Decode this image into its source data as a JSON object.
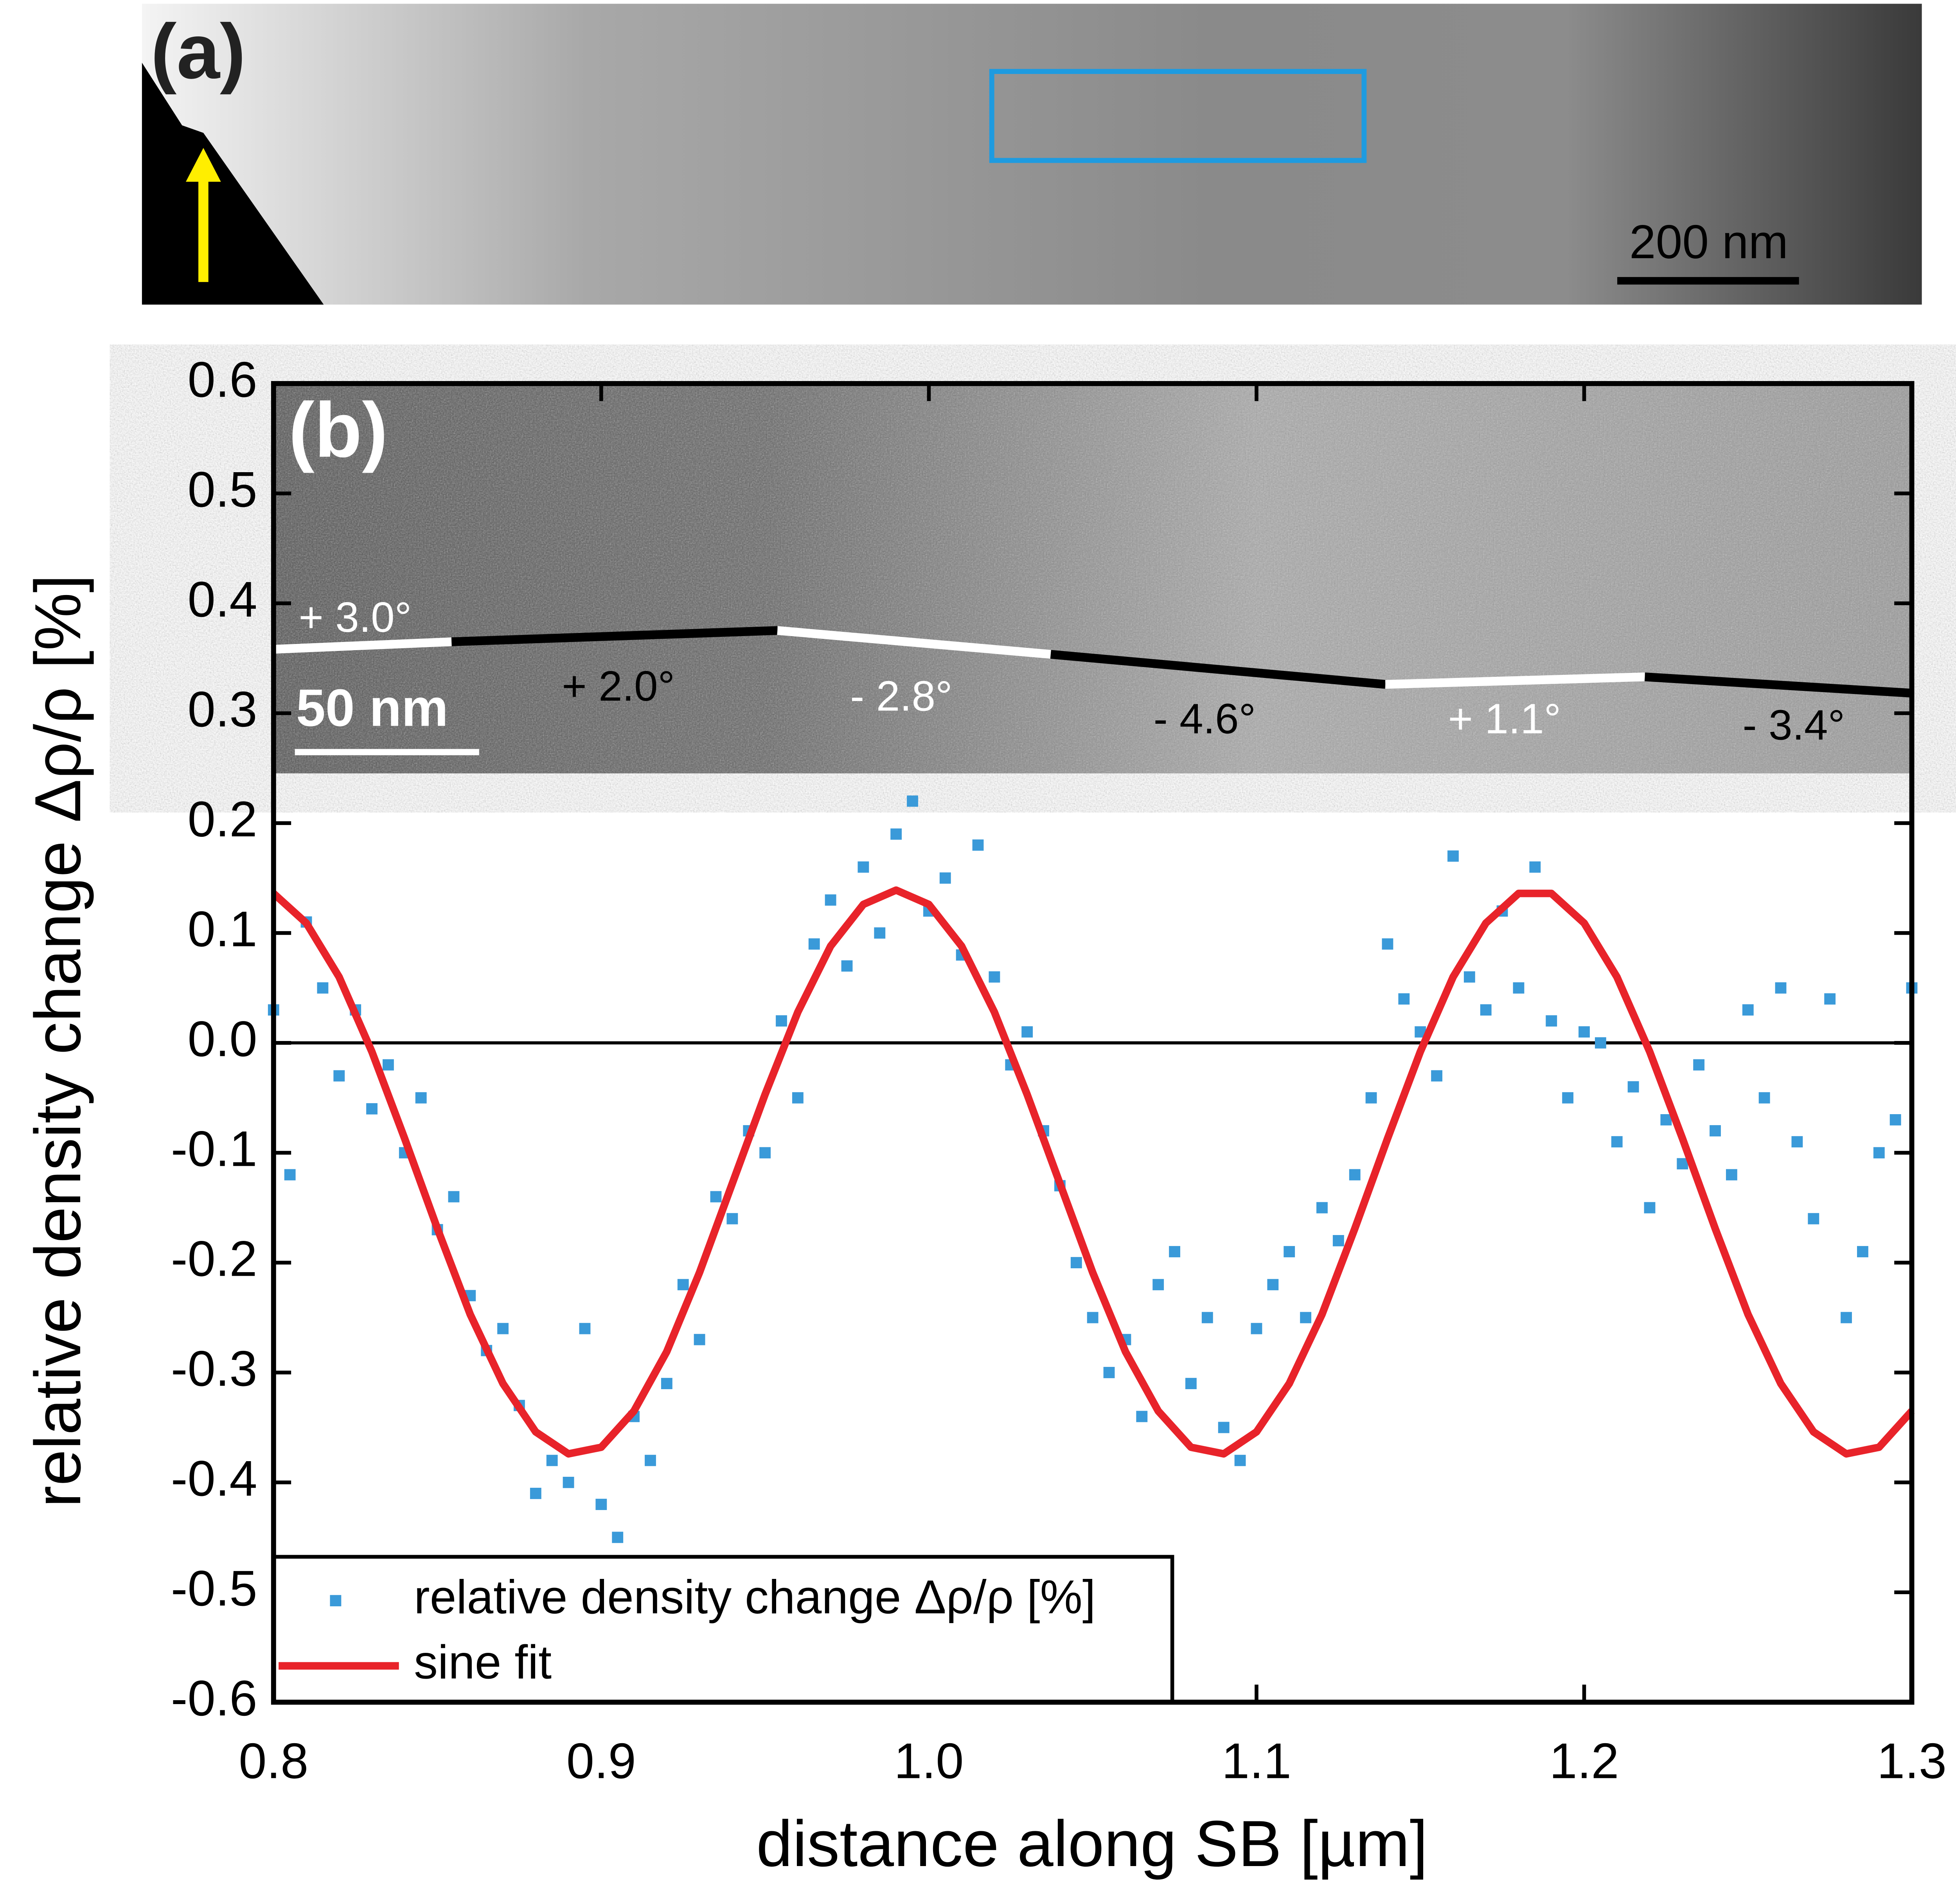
{
  "chart_data": {
    "type": "scatter",
    "xlabel": "distance along SB [µm]",
    "ylabel": "relative density change Δρ/ρ [%]",
    "xlim": [
      0.8,
      1.3
    ],
    "xticks": [
      0.8,
      0.9,
      {
        "value": 1.0,
        "label": "1.0"
      },
      1.1,
      1.2,
      1.3
    ],
    "ylim": [
      -0.6,
      0.6
    ],
    "yticks": [
      0.6,
      0.5,
      0.4,
      0.3,
      0.2,
      0.1,
      {
        "value": 0.0,
        "label": "0.0"
      },
      -0.1,
      -0.2,
      -0.3,
      -0.4,
      -0.5,
      -0.6
    ],
    "legend": "lower left",
    "annotations": [
      "(a)",
      "200 nm",
      "(b)",
      "50 nm",
      "+ 3.0°",
      "+ 2.0°",
      "- 2.8°",
      "- 4.6°",
      "+ 1.1°",
      "- 3.4°"
    ],
    "series": [
      {
        "name": "relative density change Δρ/ρ [%]",
        "color": "#3a9ad9",
        "kind": "scatter",
        "x": [
          0.8,
          0.805,
          0.81,
          0.815,
          0.82,
          0.825,
          0.83,
          0.835,
          0.84,
          0.845,
          0.85,
          0.855,
          0.86,
          0.865,
          0.87,
          0.875,
          0.88,
          0.885,
          0.89,
          0.895,
          0.9,
          0.905,
          0.91,
          0.915,
          0.92,
          0.925,
          0.93,
          0.935,
          0.94,
          0.945,
          0.95,
          0.955,
          0.96,
          0.965,
          0.97,
          0.975,
          0.98,
          0.985,
          0.99,
          0.995,
          1.0,
          1.005,
          1.01,
          1.015,
          1.02,
          1.025,
          1.03,
          1.035,
          1.04,
          1.045,
          1.05,
          1.055,
          1.06,
          1.065,
          1.07,
          1.075,
          1.08,
          1.085,
          1.09,
          1.095,
          1.1,
          1.105,
          1.11,
          1.115,
          1.12,
          1.125,
          1.13,
          1.135,
          1.14,
          1.145,
          1.15,
          1.155,
          1.16,
          1.165,
          1.17,
          1.175,
          1.18,
          1.185,
          1.19,
          1.195,
          1.2,
          1.205,
          1.21,
          1.215,
          1.22,
          1.225,
          1.23,
          1.235,
          1.24,
          1.245,
          1.25,
          1.255,
          1.26,
          1.265,
          1.27,
          1.275,
          1.28,
          1.285,
          1.29,
          1.295,
          1.3
        ],
        "values": [
          0.03,
          -0.12,
          0.11,
          0.05,
          -0.03,
          0.03,
          -0.06,
          -0.02,
          -0.1,
          -0.05,
          -0.17,
          -0.14,
          -0.23,
          -0.28,
          -0.26,
          -0.33,
          -0.41,
          -0.38,
          -0.4,
          -0.26,
          -0.42,
          -0.45,
          -0.34,
          -0.38,
          -0.31,
          -0.22,
          -0.27,
          -0.14,
          -0.16,
          -0.08,
          -0.1,
          0.02,
          -0.05,
          0.09,
          0.13,
          0.07,
          0.16,
          0.1,
          0.19,
          0.22,
          0.12,
          0.15,
          0.08,
          0.18,
          0.06,
          -0.02,
          0.01,
          -0.08,
          -0.13,
          -0.2,
          -0.25,
          -0.3,
          -0.27,
          -0.34,
          -0.22,
          -0.19,
          -0.31,
          -0.25,
          -0.35,
          -0.38,
          -0.26,
          -0.22,
          -0.19,
          -0.25,
          -0.15,
          -0.18,
          -0.12,
          -0.05,
          0.09,
          0.04,
          0.01,
          -0.03,
          0.17,
          0.06,
          0.03,
          0.12,
          0.05,
          0.16,
          0.02,
          -0.05,
          0.01,
          0.0,
          -0.09,
          -0.04,
          -0.15,
          -0.07,
          -0.11,
          -0.02,
          -0.08,
          -0.12,
          0.03,
          -0.05,
          0.05,
          -0.09,
          -0.16,
          0.04,
          -0.25,
          -0.19,
          -0.1,
          -0.07,
          0.05
        ]
      },
      {
        "name": "sine fit",
        "color": "#e8232a",
        "kind": "line",
        "x": [
          0.8,
          0.81,
          0.82,
          0.83,
          0.84,
          0.85,
          0.86,
          0.87,
          0.88,
          0.89,
          0.9,
          0.91,
          0.92,
          0.93,
          0.94,
          0.95,
          0.96,
          0.97,
          0.98,
          0.99,
          1.0,
          1.01,
          1.02,
          1.03,
          1.04,
          1.05,
          1.06,
          1.07,
          1.08,
          1.09,
          1.1,
          1.11,
          1.12,
          1.13,
          1.14,
          1.15,
          1.16,
          1.17,
          1.18,
          1.19,
          1.2,
          1.21,
          1.22,
          1.23,
          1.24,
          1.25,
          1.26,
          1.27,
          1.28,
          1.29,
          1.3
        ],
        "values": [
          0.136,
          0.109,
          0.06,
          -0.008,
          -0.087,
          -0.169,
          -0.247,
          -0.31,
          -0.354,
          -0.374,
          -0.368,
          -0.335,
          -0.281,
          -0.209,
          -0.128,
          -0.047,
          0.028,
          0.088,
          0.126,
          0.139,
          0.126,
          0.088,
          0.028,
          -0.047,
          -0.128,
          -0.209,
          -0.281,
          -0.335,
          -0.368,
          -0.374,
          -0.354,
          -0.31,
          -0.247,
          -0.169,
          -0.087,
          -0.008,
          0.06,
          0.109,
          0.136,
          0.136,
          0.109,
          0.06,
          -0.008,
          -0.087,
          -0.169,
          -0.247,
          -0.31,
          -0.354,
          -0.374,
          -0.368,
          -0.335
        ]
      }
    ]
  }
}
